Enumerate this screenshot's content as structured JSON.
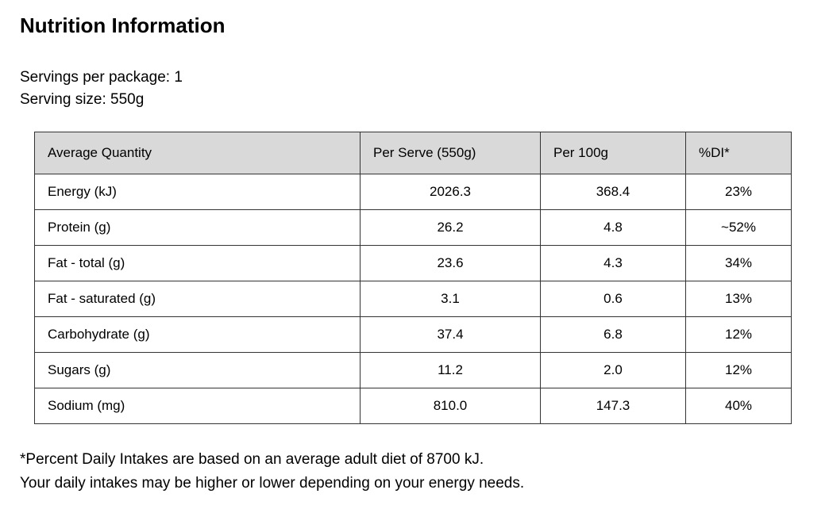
{
  "title": "Nutrition Information",
  "serving_info": {
    "servings_per_package": "Servings per package: 1",
    "serving_size": "Serving size: 550g"
  },
  "table": {
    "headers": [
      "Average Quantity",
      "Per Serve (550g)",
      "Per 100g",
      "%DI*"
    ],
    "rows": [
      {
        "label": "Energy (kJ)",
        "per_serve": "2026.3",
        "per_100g": "368.4",
        "di": "23%"
      },
      {
        "label": "Protein (g)",
        "per_serve": "26.2",
        "per_100g": "4.8",
        "di": "~52%"
      },
      {
        "label": "Fat - total (g)",
        "per_serve": "23.6",
        "per_100g": "4.3",
        "di": "34%"
      },
      {
        "label": "Fat - saturated (g)",
        "per_serve": "3.1",
        "per_100g": "0.6",
        "di": "13%"
      },
      {
        "label": "Carbohydrate (g)",
        "per_serve": "37.4",
        "per_100g": "6.8",
        "di": "12%"
      },
      {
        "label": "Sugars (g)",
        "per_serve": "11.2",
        "per_100g": "2.0",
        "di": "12%"
      },
      {
        "label": "Sodium (mg)",
        "per_serve": "810.0",
        "per_100g": "147.3",
        "di": "40%"
      }
    ]
  },
  "footnote": {
    "line1": "*Percent Daily Intakes are based on an average adult diet of 8700 kJ.",
    "line2": "Your daily intakes may be higher or lower depending on your energy needs."
  },
  "colors": {
    "header_bg": "#d9d9d9",
    "border": "#333333",
    "text": "#000000",
    "background": "#ffffff"
  }
}
